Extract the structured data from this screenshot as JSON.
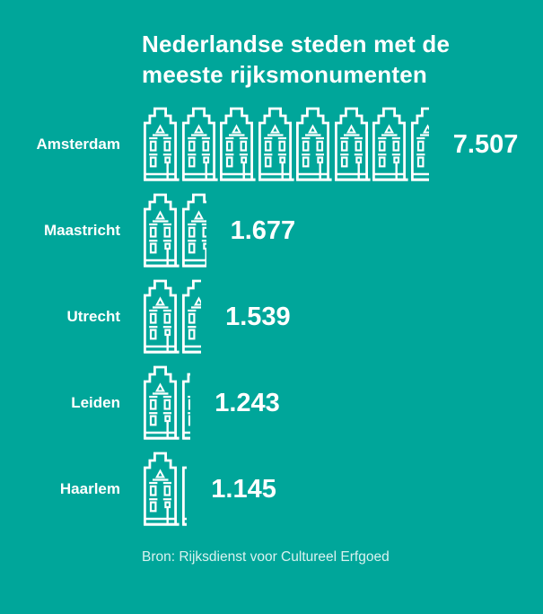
{
  "colors": {
    "background": "#00a69a",
    "foreground": "#ffffff",
    "source_text": "rgba(255,255,255,0.85)"
  },
  "title": {
    "line1": "Nederlandse steden met de",
    "line2": "meeste rijksmonumenten"
  },
  "source": "Bron: Rijksdienst voor Cultureel Erfgoed",
  "chart_data": {
    "type": "bar",
    "subtype": "pictogram",
    "orientation": "horizontal",
    "icon": "canal-house-icon",
    "icon_unit": 1000,
    "categories": [
      "Amsterdam",
      "Maastricht",
      "Utrecht",
      "Leiden",
      "Haarlem"
    ],
    "values": [
      7507,
      1677,
      1539,
      1243,
      1145
    ],
    "value_labels": [
      "7.507",
      "1.677",
      "1.539",
      "1.243",
      "1.145"
    ],
    "title": "Nederlandse steden met de meeste rijksmonumenten",
    "source": "Bron: Rijksdienst voor Cultureel Erfgoed",
    "legend": "none",
    "grid": false
  }
}
